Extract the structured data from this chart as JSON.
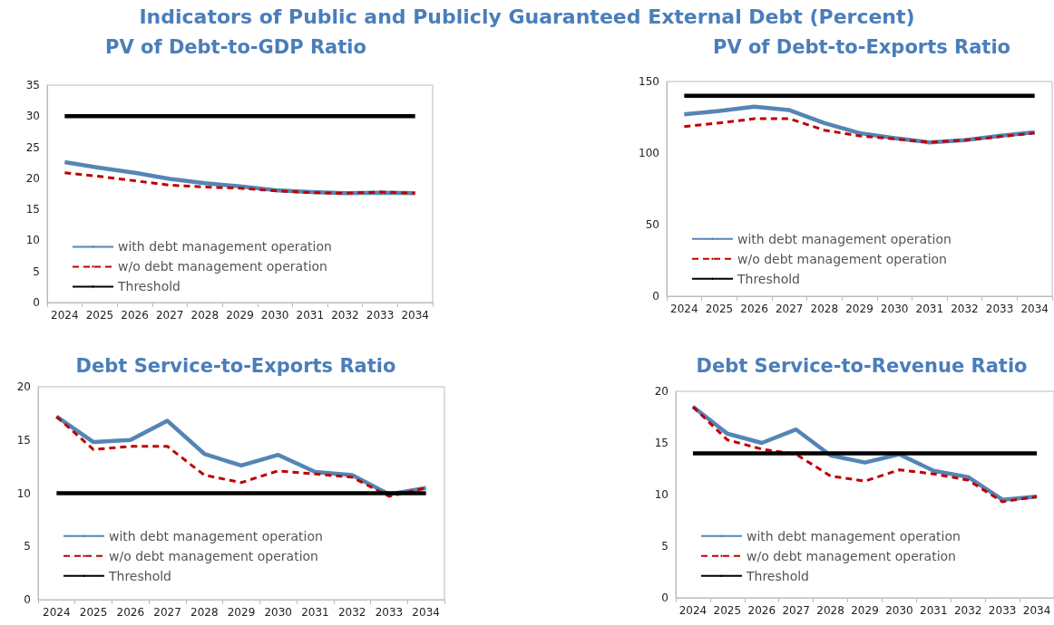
{
  "chart_data": [
    {
      "type": "line",
      "title": "PV of Debt-to-GDP Ratio",
      "annotations": [
        "Indicators of Public and Publicly Guaranteed External Debt (Percent)"
      ],
      "categories": [
        "2024",
        "2025",
        "2026",
        "2027",
        "2028",
        "2029",
        "2030",
        "2031",
        "2032",
        "2033",
        "2034"
      ],
      "ylim": [
        0,
        35
      ],
      "yticks": [
        0,
        5,
        10,
        15,
        20,
        25,
        30,
        35
      ],
      "grid": false,
      "legend": "bottom left",
      "marker": "none",
      "series": [
        {
          "name": "with debt management operation",
          "color": "#5585b5",
          "line_style": "solid",
          "values": [
            22.6,
            21.7,
            20.9,
            19.9,
            19.2,
            18.7,
            18.1,
            17.8,
            17.6,
            17.7,
            17.6
          ]
        },
        {
          "name": "w/o debt management operation",
          "color": "#c00000",
          "line_style": "dashed",
          "values": [
            20.9,
            20.3,
            19.6,
            18.9,
            18.6,
            18.4,
            18.0,
            17.7,
            17.6,
            17.8,
            17.6
          ]
        },
        {
          "name": "Threshold",
          "color": "#000000",
          "line_style": "solid",
          "values": [
            30,
            30,
            30,
            30,
            30,
            30,
            30,
            30,
            30,
            30,
            30
          ]
        }
      ]
    },
    {
      "type": "line",
      "title": "PV of Debt-to-Exports Ratio",
      "categories": [
        "2024",
        "2025",
        "2026",
        "2027",
        "2028",
        "2029",
        "2030",
        "2031",
        "2032",
        "2033",
        "2034"
      ],
      "ylim": [
        0,
        150
      ],
      "yticks": [
        0,
        50,
        100,
        150
      ],
      "grid": false,
      "legend": "bottom left",
      "marker": "none",
      "series": [
        {
          "name": "with debt management operation",
          "color": "#5585b5",
          "line_style": "solid",
          "values": [
            127,
            129.5,
            132.5,
            130,
            121,
            114,
            110.5,
            107.5,
            109,
            112,
            114.5
          ]
        },
        {
          "name": "w/o debt management operation",
          "color": "#c00000",
          "line_style": "dashed",
          "values": [
            118.5,
            121,
            124,
            124,
            116,
            112,
            110,
            107.5,
            109,
            111.5,
            114
          ]
        },
        {
          "name": "Threshold",
          "color": "#000000",
          "line_style": "solid",
          "values": [
            140,
            140,
            140,
            140,
            140,
            140,
            140,
            140,
            140,
            140,
            140
          ]
        }
      ]
    },
    {
      "type": "line",
      "title": "Debt Service-to-Exports Ratio",
      "categories": [
        "2024",
        "2025",
        "2026",
        "2027",
        "2028",
        "2029",
        "2030",
        "2031",
        "2032",
        "2033",
        "2034"
      ],
      "ylim": [
        0,
        20
      ],
      "yticks": [
        0,
        5,
        10,
        15,
        20
      ],
      "grid": false,
      "legend": "bottom left",
      "marker": "none",
      "series": [
        {
          "name": "with debt management operation",
          "color": "#5585b5",
          "line_style": "solid",
          "values": [
            17.2,
            14.8,
            15.0,
            16.8,
            13.7,
            12.6,
            13.6,
            12.0,
            11.7,
            9.9,
            10.5
          ]
        },
        {
          "name": "w/o debt management operation",
          "color": "#c00000",
          "line_style": "dashed",
          "values": [
            17.2,
            14.1,
            14.4,
            14.4,
            11.7,
            11.0,
            12.1,
            11.8,
            11.5,
            9.7,
            10.5
          ]
        },
        {
          "name": "Threshold",
          "color": "#000000",
          "line_style": "solid",
          "values": [
            10,
            10,
            10,
            10,
            10,
            10,
            10,
            10,
            10,
            10,
            10
          ]
        }
      ]
    },
    {
      "type": "line",
      "title": "Debt Service-to-Revenue Ratio",
      "categories": [
        "2024",
        "2025",
        "2026",
        "2027",
        "2028",
        "2029",
        "2030",
        "2031",
        "2032",
        "2033",
        "2034"
      ],
      "ylim": [
        0,
        20
      ],
      "yticks": [
        0,
        5,
        10,
        15,
        20
      ],
      "grid": false,
      "legend": "bottom left",
      "marker": "none",
      "series": [
        {
          "name": "with debt management operation",
          "color": "#5585b5",
          "line_style": "solid",
          "values": [
            18.5,
            15.9,
            15.0,
            16.3,
            13.8,
            13.1,
            13.9,
            12.3,
            11.7,
            9.5,
            9.8
          ]
        },
        {
          "name": "w/o debt management operation",
          "color": "#c00000",
          "line_style": "dashed",
          "values": [
            18.5,
            15.3,
            14.4,
            13.9,
            11.8,
            11.3,
            12.4,
            12.0,
            11.4,
            9.3,
            9.8
          ]
        },
        {
          "name": "Threshold",
          "color": "#000000",
          "line_style": "solid",
          "values": [
            14,
            14,
            14,
            14,
            14,
            14,
            14,
            14,
            14,
            14,
            14
          ]
        }
      ]
    }
  ]
}
